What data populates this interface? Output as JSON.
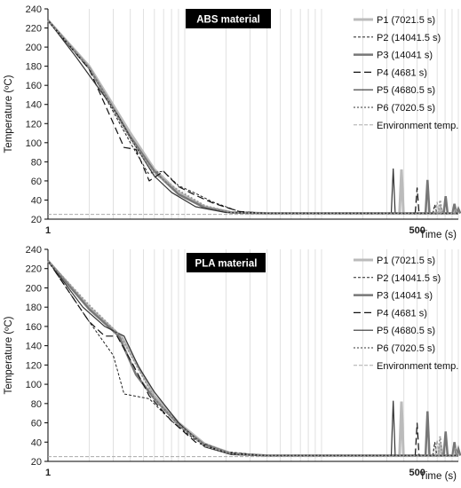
{
  "figure": {
    "background": "#ffffff",
    "grid_color": "#d9d9d9"
  },
  "chart_data": [
    {
      "type": "line",
      "title": "ABS material",
      "xlabel": "Time (s)",
      "ylabel": "Temperature (ºC)",
      "x_scale": "log",
      "xlim": [
        1,
        1000
      ],
      "ylim": [
        20,
        240
      ],
      "y_ticks": [
        20,
        40,
        60,
        80,
        100,
        120,
        140,
        160,
        180,
        200,
        220,
        240
      ],
      "x_tick_labels": [
        {
          "value": 1,
          "label": "1"
        },
        {
          "value": 500,
          "label": "500"
        }
      ],
      "grid": true,
      "legend_position": "top-right",
      "series": [
        {
          "name": "P1 (7021.5 s)",
          "color": "#bbbbbb",
          "width": 3,
          "dash": "",
          "points": [
            [
              1,
              228
            ],
            [
              2,
              180
            ],
            [
              4,
              110
            ],
            [
              6,
              72
            ],
            [
              9,
              48
            ],
            [
              14,
              33
            ],
            [
              22,
              27
            ],
            [
              40,
              26
            ],
            [
              1000,
              26
            ]
          ],
          "spikes": [
            [
              384,
              72
            ],
            [
              741,
              32
            ]
          ]
        },
        {
          "name": "P2 (14041.5 s)",
          "color": "#222222",
          "width": 1,
          "dash": "3,2",
          "points": [
            [
              1,
              228
            ],
            [
              2,
              178
            ],
            [
              4,
              100
            ],
            [
              5.4,
              68
            ],
            [
              7,
              70
            ],
            [
              9,
              55
            ],
            [
              12,
              47
            ],
            [
              16,
              38
            ],
            [
              25,
              28
            ],
            [
              40,
              26
            ],
            [
              1000,
              26
            ]
          ],
          "spikes": [
            [
              673,
              35
            ]
          ]
        },
        {
          "name": "P3 (14041 s)",
          "color": "#777777",
          "width": 2.5,
          "dash": "",
          "points": [
            [
              1,
              228
            ],
            [
              2,
              178
            ],
            [
              4,
              106
            ],
            [
              6,
              70
            ],
            [
              9,
              46
            ],
            [
              14,
              32
            ],
            [
              22,
              27
            ],
            [
              40,
              26
            ],
            [
              1000,
              26
            ]
          ],
          "spikes": [
            [
              595,
              61
            ],
            [
              807,
              44
            ],
            [
              936,
              36
            ],
            [
              1000,
              31
            ]
          ]
        },
        {
          "name": "P4 (4681 s)",
          "color": "#111111",
          "width": 1.2,
          "dash": "8,4",
          "points": [
            [
              1,
              228
            ],
            [
              2,
              177
            ],
            [
              3.6,
              95
            ],
            [
              4.4,
              93
            ],
            [
              5.5,
              60
            ],
            [
              7,
              70
            ],
            [
              9,
              54
            ],
            [
              12,
              45
            ],
            [
              16,
              37
            ],
            [
              25,
              28
            ],
            [
              40,
              26
            ],
            [
              1000,
              26
            ]
          ],
          "spikes": [
            [
              500,
              53
            ]
          ]
        },
        {
          "name": "P5 (4680.5 s)",
          "color": "#333333",
          "width": 1.2,
          "dash": "",
          "points": [
            [
              1,
              228
            ],
            [
              1.6,
              190
            ],
            [
              2.4,
              155
            ],
            [
              3.2,
              130
            ],
            [
              4.2,
              100
            ],
            [
              6,
              65
            ],
            [
              8,
              48
            ],
            [
              12,
              33
            ],
            [
              20,
              27
            ],
            [
              40,
              26
            ],
            [
              1000,
              26
            ]
          ],
          "spikes": [
            [
              334,
              73
            ]
          ]
        },
        {
          "name": "P6 (7020.5 s)",
          "color": "#999999",
          "width": 2,
          "dash": "2,2",
          "points": [
            [
              1,
              228
            ],
            [
              2,
              179
            ],
            [
              4,
              104
            ],
            [
              6,
              68
            ],
            [
              9,
              50
            ],
            [
              14,
              34
            ],
            [
              22,
              27
            ],
            [
              40,
              26
            ],
            [
              1000,
              26
            ]
          ],
          "spikes": [
            [
              736,
              40
            ]
          ]
        },
        {
          "name": "Environment temp.",
          "color": "#aaaaaa",
          "width": 1,
          "dash": "4,2",
          "points": [
            [
              1,
              25
            ],
            [
              1000,
              25
            ]
          ],
          "spikes": [
            [
              700,
              38
            ],
            [
              950,
              31
            ]
          ]
        }
      ]
    },
    {
      "type": "line",
      "title": "PLA material",
      "xlabel": "Time (s)",
      "ylabel": "Temperature (ºC)",
      "x_scale": "log",
      "xlim": [
        1,
        1000
      ],
      "ylim": [
        20,
        240
      ],
      "y_ticks": [
        20,
        40,
        60,
        80,
        100,
        120,
        140,
        160,
        180,
        200,
        220,
        240
      ],
      "x_tick_labels": [
        {
          "value": 1,
          "label": "1"
        },
        {
          "value": 500,
          "label": "500"
        }
      ],
      "grid": true,
      "legend_position": "top-right",
      "series": [
        {
          "name": "P1 (7021.5 s)",
          "color": "#bbbbbb",
          "width": 3,
          "dash": "",
          "points": [
            [
              1,
              228
            ],
            [
              2,
              180
            ],
            [
              3.5,
              148
            ],
            [
              4.5,
              120
            ],
            [
              6,
              88
            ],
            [
              9,
              60
            ],
            [
              14,
              38
            ],
            [
              22,
              28
            ],
            [
              40,
              26
            ],
            [
              1000,
              26
            ]
          ],
          "spikes": [
            [
              384,
              82
            ],
            [
              741,
              38
            ]
          ]
        },
        {
          "name": "P2 (14041.5 s)",
          "color": "#222222",
          "width": 1,
          "dash": "3,2",
          "points": [
            [
              1,
              228
            ],
            [
              2,
              165
            ],
            [
              3,
              130
            ],
            [
              3.6,
              90
            ],
            [
              5.5,
              85
            ],
            [
              8,
              62
            ],
            [
              12,
              42
            ],
            [
              20,
              30
            ],
            [
              40,
              26
            ],
            [
              1000,
              26
            ]
          ],
          "spikes": [
            [
              673,
              40
            ]
          ]
        },
        {
          "name": "P3 (14041 s)",
          "color": "#777777",
          "width": 2.5,
          "dash": "",
          "points": [
            [
              1,
              228
            ],
            [
              2,
              178
            ],
            [
              3.3,
              150
            ],
            [
              4.4,
              110
            ],
            [
              6,
              85
            ],
            [
              9,
              58
            ],
            [
              14,
              37
            ],
            [
              22,
              28
            ],
            [
              40,
              26
            ],
            [
              1000,
              26
            ]
          ],
          "spikes": [
            [
              595,
              72
            ],
            [
              807,
              51
            ],
            [
              936,
              40
            ],
            [
              1000,
              33
            ]
          ]
        },
        {
          "name": "P4 (4681 s)",
          "color": "#111111",
          "width": 1.2,
          "dash": "8,4",
          "points": [
            [
              1,
              228
            ],
            [
              2,
              165
            ],
            [
              2.6,
              150
            ],
            [
              3.2,
              150
            ],
            [
              4.2,
              120
            ],
            [
              5.5,
              88
            ],
            [
              8,
              62
            ],
            [
              12,
              40
            ],
            [
              20,
              29
            ],
            [
              40,
              26
            ],
            [
              1000,
              26
            ]
          ],
          "spikes": [
            [
              500,
              60
            ]
          ]
        },
        {
          "name": "P5 (4680.5 s)",
          "color": "#333333",
          "width": 1.2,
          "dash": "",
          "points": [
            [
              1,
              228
            ],
            [
              1.8,
              180
            ],
            [
              2.6,
              160
            ],
            [
              3.6,
              150
            ],
            [
              4.6,
              118
            ],
            [
              6,
              92
            ],
            [
              9,
              60
            ],
            [
              14,
              35
            ],
            [
              22,
              27
            ],
            [
              40,
              26
            ],
            [
              1000,
              26
            ]
          ],
          "spikes": [
            [
              334,
              83
            ]
          ]
        },
        {
          "name": "P6 (7020.5 s)",
          "color": "#999999",
          "width": 2,
          "dash": "2,2",
          "points": [
            [
              1,
              228
            ],
            [
              2,
              182
            ],
            [
              3.4,
              150
            ],
            [
              4.5,
              118
            ],
            [
              6,
              86
            ],
            [
              9,
              58
            ],
            [
              14,
              36
            ],
            [
              22,
              28
            ],
            [
              40,
              26
            ],
            [
              1000,
              26
            ]
          ],
          "spikes": [
            [
              736,
              46
            ]
          ]
        },
        {
          "name": "Environment temp.",
          "color": "#aaaaaa",
          "width": 1,
          "dash": "4,2",
          "points": [
            [
              1,
              25
            ],
            [
              1000,
              25
            ]
          ],
          "spikes": [
            [
              700,
              42
            ],
            [
              950,
              34
            ]
          ]
        }
      ]
    }
  ]
}
